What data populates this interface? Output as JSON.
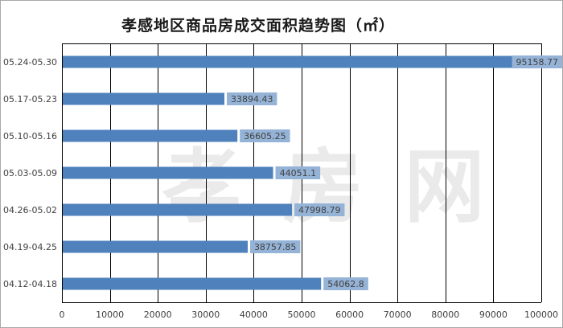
{
  "chart_data": {
    "type": "bar",
    "orientation": "horizontal",
    "title": "孝感地区商品房成交面积趋势图（㎡）",
    "categories": [
      "05.24-05.30",
      "05.17-05.23",
      "05.10-05.16",
      "05.03-05.09",
      "04.26-05.02",
      "04.19-04.25",
      "04.12-04.18"
    ],
    "values": [
      95158.77,
      33894.43,
      36605.25,
      44051.1,
      47998.79,
      38757.85,
      54062.8
    ],
    "value_labels": [
      "95158.77",
      "33894.43",
      "36605.25",
      "44051.1",
      "47998.79",
      "38757.85",
      "54062.8"
    ],
    "xlim": [
      0,
      100000
    ],
    "x_ticks": [
      0,
      10000,
      20000,
      30000,
      40000,
      50000,
      60000,
      70000,
      80000,
      90000,
      100000
    ],
    "x_tick_labels": [
      "0",
      "10000",
      "20000",
      "30000",
      "40000",
      "50000",
      "60000",
      "70000",
      "80000",
      "90000",
      "100000"
    ],
    "grid": true,
    "legend": "none",
    "colors": {
      "bar": "#4f81bd",
      "label_bg": "#95b3d7",
      "grid": "#000000",
      "text": "#404040"
    }
  },
  "watermark": "孝房网"
}
